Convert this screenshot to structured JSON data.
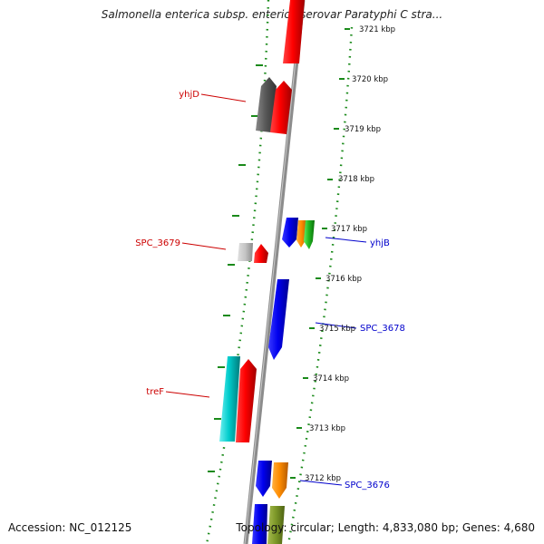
{
  "title": "Salmonella enterica subsp. enterica serovar Paratyphi C stra...",
  "footer": {
    "accession": "Accession: NC_012125",
    "summary": "Topology: circular; Length: 4,833,080 bp; Genes: 4,680"
  },
  "colors": {
    "backbone": "#8c8c8c",
    "tick": "#1a8a1a",
    "forward_label": "#cc0000",
    "reverse_label": "#0000cc"
  },
  "scale_ticks": [
    "3721 kbp",
    "3720 kbp",
    "3719 kbp",
    "3718 kbp",
    "3717 kbp",
    "3716 kbp",
    "3715 kbp",
    "3714 kbp",
    "3713 kbp",
    "3712 kbp"
  ],
  "gene_labels": [
    {
      "text": "yhjD",
      "strand": "left"
    },
    {
      "text": "SPC_3679",
      "strand": "left"
    },
    {
      "text": "yhjB",
      "strand": "right"
    },
    {
      "text": "SPC_3678",
      "strand": "right"
    },
    {
      "text": "treF",
      "strand": "left"
    },
    {
      "text": "SPC_3676",
      "strand": "right"
    }
  ],
  "features": [
    {
      "name": "gene-red-top",
      "color": "red"
    },
    {
      "name": "gene-dark-gray",
      "color": "darkgray"
    },
    {
      "name": "gene-red-yhjD",
      "color": "red"
    },
    {
      "name": "gene-blue-yhjB",
      "color": "blue"
    },
    {
      "name": "gene-orange-yhjB",
      "color": "orange"
    },
    {
      "name": "gene-green-yhjB",
      "color": "green"
    },
    {
      "name": "gene-gray-SPC_3679",
      "color": "lightgray"
    },
    {
      "name": "gene-red-SPC_3679",
      "color": "red"
    },
    {
      "name": "gene-blue-SPC_3678",
      "color": "blue"
    },
    {
      "name": "gene-cyan-treF",
      "color": "cyan"
    },
    {
      "name": "gene-red-treF",
      "color": "red"
    },
    {
      "name": "gene-blue-SPC_3676",
      "color": "blue"
    },
    {
      "name": "gene-orange-SPC_3676",
      "color": "orange"
    },
    {
      "name": "gene-blue-bottom",
      "color": "blue"
    },
    {
      "name": "gene-olive-bottom",
      "color": "olive"
    }
  ]
}
